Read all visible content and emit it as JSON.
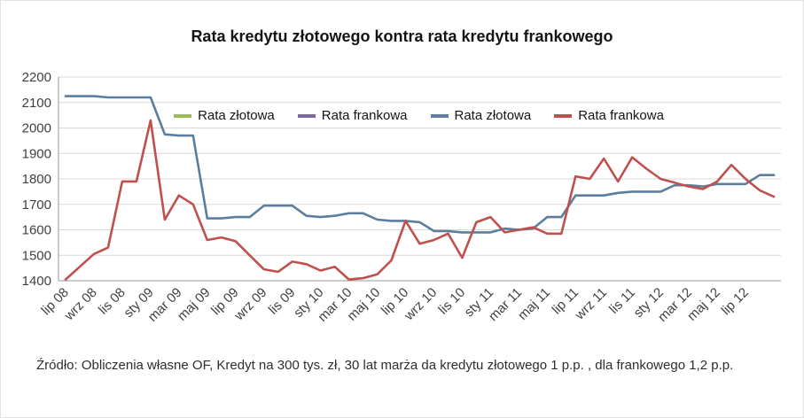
{
  "chart_data": {
    "type": "line",
    "title": "Rata kredytu złotowego kontra rata kredytu frankowego",
    "xlabel": "",
    "ylabel": "",
    "ylim": [
      1400,
      2200
    ],
    "ytick_step": 100,
    "grid": "horizontal",
    "legend_position": "top-inside-horizontal",
    "points_per_tick": 2,
    "x_tick_labels": [
      "lip 08",
      "wrz 08",
      "lis 08",
      "sty 09",
      "mar 09",
      "maj 09",
      "lip 09",
      "wrz 09",
      "lis 09",
      "sty 10",
      "mar 10",
      "maj 10",
      "lip 10",
      "wrz 10",
      "lis 10",
      "sty 11",
      "mar 11",
      "maj 11",
      "lip 11",
      "wrz 11",
      "lis 11",
      "sty 12",
      "mar 12",
      "maj 12",
      "lip 12"
    ],
    "legend": [
      {
        "label": "Rata złotowa",
        "color": "#9BBB59"
      },
      {
        "label": "Rata frankowa",
        "color": "#8064A2"
      },
      {
        "label": "Rata złotowa",
        "color": "#5B7E9E"
      },
      {
        "label": "Rata frankowa",
        "color": "#C0504D"
      }
    ],
    "series": [
      {
        "name": "Rata złotowa",
        "color": "#5B7E9E",
        "values": [
          2125,
          2125,
          2125,
          2120,
          2120,
          2120,
          2120,
          1975,
          1970,
          1970,
          1645,
          1645,
          1650,
          1650,
          1695,
          1695,
          1695,
          1655,
          1650,
          1655,
          1665,
          1665,
          1640,
          1635,
          1635,
          1630,
          1595,
          1595,
          1590,
          1590,
          1590,
          1605,
          1600,
          1605,
          1650,
          1650,
          1735,
          1735,
          1735,
          1745,
          1750,
          1750,
          1750,
          1775,
          1775,
          1770,
          1780,
          1780,
          1780,
          1815,
          1815
        ]
      },
      {
        "name": "Rata frankowa",
        "color": "#C0504D",
        "values": [
          1405,
          1455,
          1505,
          1530,
          1790,
          1790,
          2030,
          1640,
          1735,
          1700,
          1560,
          1570,
          1555,
          1500,
          1445,
          1435,
          1475,
          1465,
          1440,
          1455,
          1405,
          1410,
          1425,
          1480,
          1635,
          1545,
          1560,
          1585,
          1490,
          1630,
          1650,
          1590,
          1600,
          1610,
          1585,
          1585,
          1810,
          1800,
          1880,
          1790,
          1885,
          1840,
          1800,
          1785,
          1770,
          1760,
          1790,
          1855,
          1800,
          1755,
          1730
        ]
      }
    ]
  },
  "footer": {
    "text": "Źródło: Obliczenia własne OF, Kredyt na 300 tys. zł, 30 lat marża da kredytu złotowego 1 p.p. , dla frankowego 1,2 p.p."
  }
}
